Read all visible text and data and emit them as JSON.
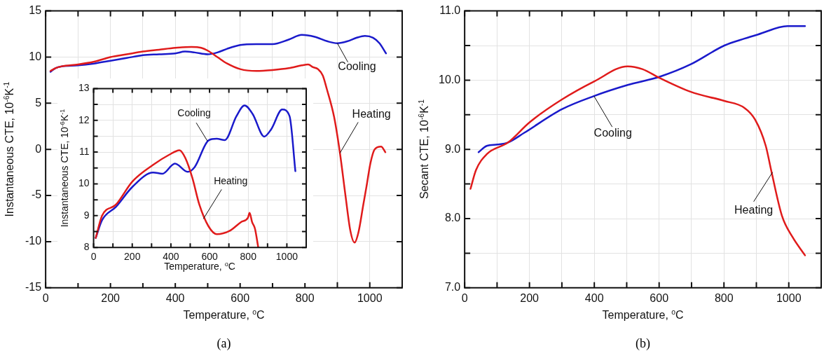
{
  "chart_data": [
    {
      "type": "line",
      "xlabel": "Temperature, $^{o}$C",
      "ylabel": "Instantaneous CTE, 10$^{-6}$K$^{-1}$",
      "xlim": [
        0,
        1100
      ],
      "ylim": [
        -15,
        15
      ],
      "xticks": [
        0,
        {
          "value": 100,
          "label": null
        },
        200,
        {
          "value": 300,
          "label": null
        },
        400,
        {
          "value": 500,
          "label": null
        },
        600,
        {
          "value": 700,
          "label": null
        },
        800,
        {
          "value": 900,
          "label": null
        },
        1000
      ],
      "yticks": [
        -15,
        -10,
        -5,
        0,
        5,
        10,
        15
      ],
      "grid": true,
      "marker": "none",
      "series": [
        {
          "color": "#e01b1b",
          "x": [
            15,
            30,
            50,
            100,
            150,
            200,
            250,
            300,
            350,
            400,
            450,
            480,
            500,
            530,
            560,
            600,
            650,
            700,
            750,
            790,
            810,
            825,
            840,
            855,
            867,
            890,
            908,
            925,
            940,
            953,
            965,
            980,
            990,
            1002,
            1015,
            1035,
            1048
          ],
          "values": [
            8.5,
            8.8,
            9.0,
            9.2,
            9.5,
            10.0,
            10.3,
            10.6,
            10.8,
            11.0,
            11.1,
            11.0,
            10.7,
            10.0,
            9.3,
            8.7,
            8.5,
            8.6,
            8.8,
            9.1,
            9.2,
            8.9,
            8.7,
            8.0,
            6.6,
            3.5,
            -0.4,
            -5,
            -8.8,
            -10.1,
            -9,
            -6,
            -4,
            -1.5,
            0,
            0.3,
            -0.3
          ]
        },
        {
          "color": "#1a1acb",
          "x": [
            15,
            30,
            50,
            100,
            150,
            200,
            250,
            300,
            350,
            400,
            430,
            460,
            500,
            530,
            560,
            600,
            650,
            700,
            750,
            790,
            830,
            870,
            900,
            930,
            960,
            985,
            1010,
            1030,
            1050
          ],
          "values": [
            8.4,
            8.8,
            9.0,
            9.1,
            9.3,
            9.6,
            9.9,
            10.2,
            10.3,
            10.4,
            10.6,
            10.5,
            10.3,
            10.5,
            10.9,
            11.3,
            11.4,
            11.4,
            11.9,
            12.4,
            12.2,
            11.7,
            11.5,
            11.7,
            12.1,
            12.3,
            12.1,
            11.5,
            10.4
          ]
        }
      ],
      "annotations": [
        {
          "text": "Cooling",
          "x": 900,
          "y": 11.5
        },
        {
          "text": "Heating",
          "x": 908,
          "y": -0.4
        },
        "(a)"
      ]
    },
    {
      "type": "line",
      "xlabel": "Temperature, $^{o}$C",
      "ylabel": "Instantaneous CTE, 10$^{-6}$K$^{-1}$",
      "xlim": [
        0,
        1100
      ],
      "ylim": [
        8,
        13
      ],
      "xticks": [
        0,
        {
          "value": 100,
          "label": null
        },
        200,
        {
          "value": 300,
          "label": null
        },
        400,
        {
          "value": 500,
          "label": null
        },
        600,
        {
          "value": 700,
          "label": null
        },
        800,
        {
          "value": 900,
          "label": null
        },
        1000
      ],
      "yticks": [
        8,
        {
          "value": 8.5,
          "label": null
        },
        9,
        {
          "value": 9.5,
          "label": null
        },
        10,
        {
          "value": 10.5,
          "label": null
        },
        11,
        {
          "value": 11.5,
          "label": null
        },
        12,
        {
          "value": 12.5,
          "label": null
        },
        13
      ],
      "grid": true,
      "marker": "none",
      "series": [
        {
          "color": "#e01b1b",
          "x": [
            11,
            44,
            116,
            200,
            308,
            392,
            445,
            475,
            511,
            547,
            595,
            637,
            703,
            763,
            799,
            807,
            820,
            835,
            852
          ],
          "values": [
            8.3,
            9.0,
            9.35,
            10.07,
            10.6,
            10.92,
            11.06,
            10.81,
            10.19,
            9.35,
            8.66,
            8.42,
            8.52,
            8.8,
            8.94,
            9.09,
            8.8,
            8.59,
            8.0
          ]
        },
        {
          "color": "#1a1acb",
          "x": [
            11,
            44,
            116,
            200,
            308,
            356,
            421,
            487,
            523,
            595,
            637,
            679,
            739,
            781,
            823,
            883,
            919,
            976,
            1014,
            1044
          ],
          "values": [
            8.3,
            8.86,
            9.28,
            9.9,
            10.36,
            10.32,
            10.64,
            10.38,
            10.53,
            11.37,
            11.42,
            11.38,
            12.13,
            12.47,
            12.2,
            11.49,
            11.72,
            12.34,
            12.13,
            10.4
          ]
        }
      ],
      "annotations": [
        {
          "text": "Cooling",
          "x": 589,
          "y": 11.35
        },
        {
          "text": "Heating",
          "x": 568,
          "y": 8.9
        }
      ]
    },
    {
      "type": "line",
      "xlabel": "Temperature, $^{o}$C",
      "ylabel": "Secant CTE, 10$^{-6}$K$^{-1}$",
      "xlim": [
        0,
        1100
      ],
      "ylim": [
        7,
        11
      ],
      "xticks": [
        0,
        {
          "value": 100,
          "label": null
        },
        200,
        {
          "value": 300,
          "label": null
        },
        400,
        {
          "value": 500,
          "label": null
        },
        600,
        {
          "value": 700,
          "label": null
        },
        800,
        {
          "value": 900,
          "label": null
        },
        1000
      ],
      "yticks": [
        {
          "value": 7,
          "label": "7.0"
        },
        {
          "value": 7.5,
          "label": null
        },
        {
          "value": 8,
          "label": "8.0"
        },
        {
          "value": 8.5,
          "label": null
        },
        {
          "value": 9,
          "label": "9.0"
        },
        {
          "value": 9.5,
          "label": null
        },
        {
          "value": 10,
          "label": "10.0"
        },
        {
          "value": 10.5,
          "label": null
        },
        {
          "value": 11,
          "label": "11.0"
        }
      ],
      "grid": true,
      "marker": "none",
      "series": [
        {
          "color": "#e01b1b",
          "x": [
            18,
            35,
            68,
            134,
            200,
            300,
            399,
            503,
            548,
            602,
            698,
            801,
            863,
            896,
            929,
            946,
            979,
            1012,
            1050
          ],
          "values": [
            8.43,
            8.7,
            8.93,
            9.1,
            9.39,
            9.72,
            9.98,
            10.2,
            10.16,
            10.03,
            9.83,
            9.7,
            9.6,
            9.43,
            9.05,
            8.69,
            8.04,
            7.73,
            7.47
          ]
        },
        {
          "color": "#1a1acb",
          "x": [
            43,
            68,
            101,
            134,
            184,
            300,
            399,
            503,
            602,
            698,
            801,
            863,
            905,
            996,
            1050
          ],
          "values": [
            8.96,
            9.05,
            9.07,
            9.1,
            9.24,
            9.58,
            9.77,
            9.93,
            10.05,
            10.23,
            10.5,
            10.6,
            10.66,
            10.78,
            10.78
          ]
        }
      ],
      "annotations": [
        {
          "text": "Cooling",
          "x": 399,
          "y": 9.77
        },
        {
          "text": "Heating",
          "x": 950,
          "y": 8.67
        },
        "(b)"
      ]
    }
  ]
}
